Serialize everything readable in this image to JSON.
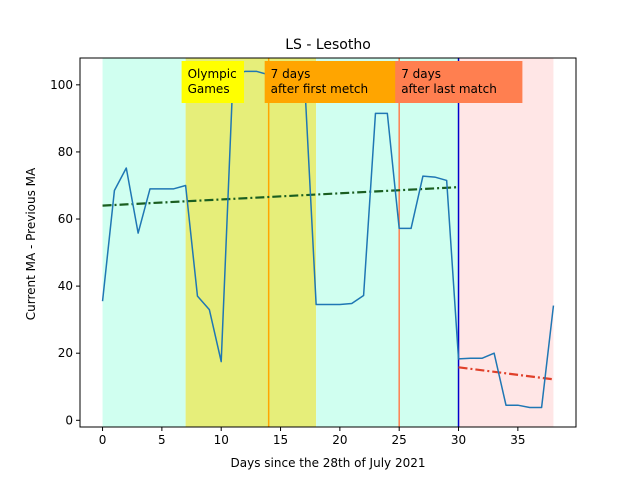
{
  "chart_data": {
    "type": "line",
    "title": "LS - Lesotho",
    "xlabel": "Days since the 28th of July 2021",
    "ylabel": "Current MA - Previous MA",
    "xlim": [
      -1.9,
      39.9
    ],
    "ylim": [
      -2,
      108
    ],
    "xticks": [
      0,
      5,
      10,
      15,
      20,
      25,
      30,
      35
    ],
    "yticks": [
      0,
      20,
      40,
      60,
      80,
      100
    ],
    "x_tick_labels": [
      "0",
      "5",
      "10",
      "15",
      "20",
      "25",
      "30",
      "35"
    ],
    "y_tick_labels": [
      "0",
      "20",
      "40",
      "60",
      "80",
      "100"
    ],
    "grid": false,
    "series": [
      {
        "x": [
          0,
          1,
          2,
          3,
          4,
          5,
          6,
          7,
          8,
          9,
          10,
          11,
          12,
          13,
          14,
          15,
          16,
          17,
          18,
          19,
          20,
          21,
          22,
          23,
          24,
          25,
          26,
          27,
          28,
          29,
          30,
          31,
          32,
          33,
          34,
          35,
          36,
          37,
          38
        ],
        "values": [
          35.5,
          68.5,
          75.2,
          55.8,
          69,
          69,
          69,
          70,
          37,
          33,
          17.5,
          103,
          104,
          104,
          103,
          103,
          103,
          103,
          34.5,
          34.5,
          34.5,
          34.8,
          37.2,
          91.5,
          91.5,
          57.2,
          57.2,
          72.8,
          72.5,
          71.5,
          18.3,
          18.5,
          18.5,
          20,
          4.5,
          4.5,
          3.8,
          3.8,
          34.2
        ],
        "color": "#1f77b4"
      }
    ],
    "trend_lines": [
      {
        "x": [
          0,
          30
        ],
        "values": [
          64,
          69.5
        ],
        "color": "#1a5e20",
        "style": "dash-dot"
      },
      {
        "x": [
          30,
          38
        ],
        "values": [
          15.8,
          12.2
        ],
        "color": "#e0402a",
        "style": "dash-dot"
      }
    ],
    "shaded_regions": [
      {
        "x": [
          0,
          7
        ],
        "color": "#d0fff0"
      },
      {
        "x": [
          7,
          18
        ],
        "color": "#e6ee7a"
      },
      {
        "x": [
          18,
          30
        ],
        "color": "#d0fff0"
      },
      {
        "x": [
          30,
          38
        ],
        "color": "#ffe6e6"
      }
    ],
    "vertical_lines": [
      {
        "x": 14,
        "color": "#ffa500"
      },
      {
        "x": 25,
        "color": "#ff7f50"
      },
      {
        "x": 30,
        "color": "#0000cc"
      }
    ],
    "annotations": [
      {
        "lines": [
          "Olympic",
          "Games"
        ],
        "x": 7,
        "bg": "#ffff00"
      },
      {
        "lines": [
          "7 days",
          "after first metch"
        ],
        "x": 14,
        "bg": "#ffa500"
      },
      {
        "lines": [
          "7 days",
          "after last match"
        ],
        "x": 25,
        "bg": "#ff7f50"
      }
    ]
  }
}
